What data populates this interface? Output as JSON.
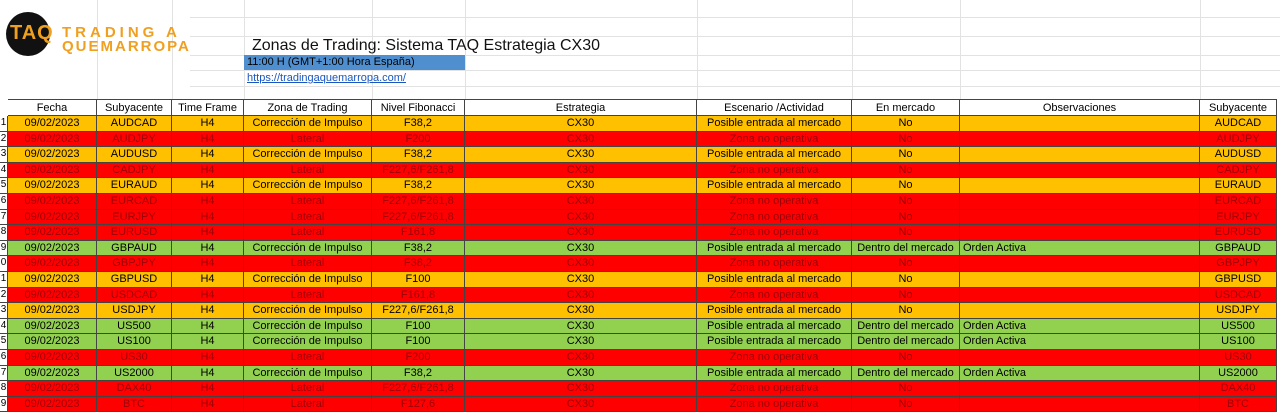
{
  "logo": {
    "badge": "TAQ",
    "line1": "TRADING A",
    "line2": "QUEMARROPA"
  },
  "header": {
    "title": "Zonas de Trading: Sistema TAQ Estrategia CX30",
    "time": "11:00 H (GMT+1:00 Hora España)",
    "link": "https://tradingaquemarropa.com/"
  },
  "table": {
    "columns": [
      "Fecha",
      "Subyacente",
      "Time Frame",
      "Zona de Trading",
      "Nivel Fibonacci",
      "Estrategia",
      "Escenario /Actividad",
      "En mercado",
      "Observaciones",
      "Subyacente"
    ],
    "row_labels": [
      "1",
      "2",
      "3",
      "4",
      "5",
      "6",
      "7",
      "8",
      "9",
      "0",
      "1",
      "2",
      "3",
      "4",
      "5",
      "6",
      "7",
      "8",
      "9"
    ],
    "row_colors": [
      "#ffc000",
      "#ff0000",
      "#ffc000",
      "#ff0000",
      "#ffc000",
      "#ff0000",
      "#ff0000",
      "#ff0000",
      "#92d050",
      "#ff0000",
      "#ffc000",
      "#ff0000",
      "#ffc000",
      "#92d050",
      "#92d050",
      "#ff0000",
      "#92d050",
      "#ff0000",
      "#ff0000"
    ],
    "rows": [
      [
        "09/02/2023",
        "AUDCAD",
        "H4",
        "Corrección de Impulso",
        "F38,2",
        "CX30",
        "Posible entrada al mercado",
        "No",
        "",
        "AUDCAD"
      ],
      [
        "09/02/2023",
        "AUDJPY",
        "H4",
        "Lateral",
        "F200",
        "CX30",
        "Zona no operativa",
        "No",
        "",
        "AUDJPY"
      ],
      [
        "09/02/2023",
        "AUDUSD",
        "H4",
        "Corrección de Impulso",
        "F38,2",
        "CX30",
        "Posible entrada al mercado",
        "No",
        "",
        "AUDUSD"
      ],
      [
        "09/02/2023",
        "CADJPY",
        "H4",
        "Lateral",
        "F227,6/F261,8",
        "CX30",
        "Zona no operativa",
        "No",
        "",
        "CADJPY"
      ],
      [
        "09/02/2023",
        "EURAUD",
        "H4",
        "Corrección de Impulso",
        "F38,2",
        "CX30",
        "Posible entrada al mercado",
        "No",
        "",
        "EURAUD"
      ],
      [
        "09/02/2023",
        "EURCAD",
        "H4",
        "Lateral",
        "F227,6/F261,8",
        "CX30",
        "Zona no operativa",
        "No",
        "",
        "EURCAD"
      ],
      [
        "09/02/2023",
        "EURJPY",
        "H4",
        "Lateral",
        "F227,6/F261,8",
        "CX30",
        "Zona no operativa",
        "No",
        "",
        "EURJPY"
      ],
      [
        "09/02/2023",
        "EURUSD",
        "H4",
        "Lateral",
        "F161,8",
        "CX30",
        "Zona no operativa",
        "No",
        "",
        "EURUSD"
      ],
      [
        "09/02/2023",
        "GBPAUD",
        "H4",
        "Corrección de Impulso",
        "F38,2",
        "CX30",
        "Posible entrada al mercado",
        "Dentro del mercado",
        "Orden Activa",
        "GBPAUD"
      ],
      [
        "09/02/2023",
        "GBPJPY",
        "H4",
        "Lateral",
        "F38,2",
        "CX30",
        "Zona no operativa",
        "No",
        "",
        "GBPJPY"
      ],
      [
        "09/02/2023",
        "GBPUSD",
        "H4",
        "Corrección de Impulso",
        "F100",
        "CX30",
        "Posible entrada al mercado",
        "No",
        "",
        "GBPUSD"
      ],
      [
        "09/02/2023",
        "USDCAD",
        "H4",
        "Lateral",
        "F161,8",
        "CX30",
        "Zona no operativa",
        "No",
        "",
        "USDCAD"
      ],
      [
        "09/02/2023",
        "USDJPY",
        "H4",
        "Corrección de Impulso",
        "F227,6/F261,8",
        "CX30",
        "Posible entrada al mercado",
        "No",
        "",
        "USDJPY"
      ],
      [
        "09/02/2023",
        "US500",
        "H4",
        "Corrección de Impulso",
        "F100",
        "CX30",
        "Posible entrada al mercado",
        "Dentro del mercado",
        "Orden Activa",
        "US500"
      ],
      [
        "09/02/2023",
        "US100",
        "H4",
        "Corrección de Impulso",
        "F100",
        "CX30",
        "Posible entrada al mercado",
        "Dentro del mercado",
        "Orden Activa",
        "US100"
      ],
      [
        "09/02/2023",
        "US30",
        "H4",
        "Lateral",
        "F200",
        "CX30",
        "Zona no operativa",
        "No",
        "",
        "US30"
      ],
      [
        "09/02/2023",
        "US2000",
        "H4",
        "Corrección de Impulso",
        "F38,2",
        "CX30",
        "Posible entrada al mercado",
        "Dentro del mercado",
        "Orden Activa",
        "US2000"
      ],
      [
        "09/02/2023",
        "DAX40",
        "H4",
        "Lateral",
        "F227,6/F261,8",
        "CX30",
        "Zona no operativa",
        "No",
        "",
        "DAX40"
      ],
      [
        "09/02/2023",
        "BTC",
        "H4",
        "Lateral",
        "F127,6",
        "CX30",
        "Zona no operativa",
        "No",
        "",
        "BTC"
      ]
    ]
  }
}
